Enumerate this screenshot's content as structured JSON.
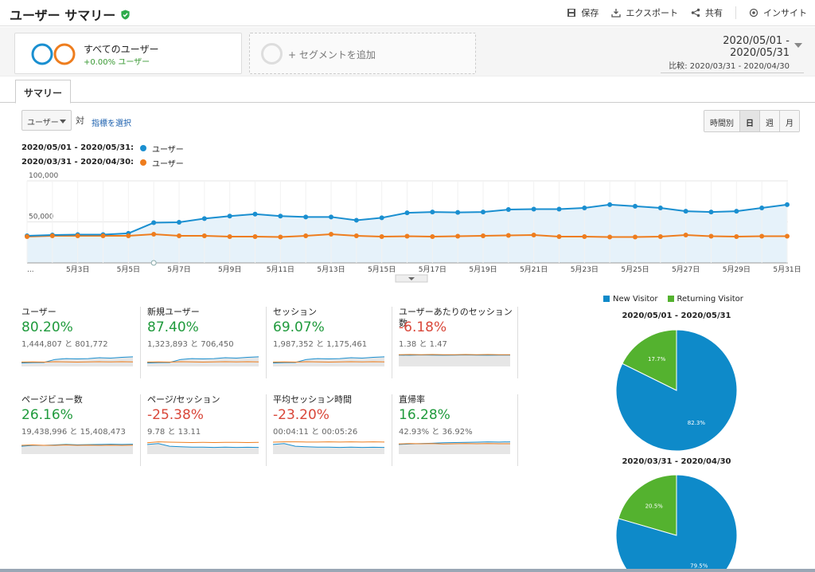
{
  "header": {
    "title": "ユーザー サマリー",
    "actions": {
      "save": "保存",
      "export": "エクスポート",
      "share": "共有",
      "insight": "インサイト"
    }
  },
  "segment": {
    "title": "すべてのユーザー",
    "sub": "+0.00% ユーザー",
    "add": "+ セグメントを追加"
  },
  "daterange": {
    "main": "2020/05/01 - 2020/05/31",
    "compare": "比較: 2020/03/31 - 2020/04/30"
  },
  "tab": {
    "label": "サマリー"
  },
  "controls": {
    "metric": "ユーザー",
    "vs": "対",
    "choose": "指標を選択",
    "granularity": [
      "時間別",
      "日",
      "週",
      "月"
    ],
    "granularity_active": "日"
  },
  "legend": [
    {
      "range": "2020/05/01 - 2020/05/31:",
      "name": "ユーザー",
      "color": "#1a8fd0"
    },
    {
      "range": "2020/03/31 - 2020/04/30:",
      "name": "ユーザー",
      "color": "#ee7d1e"
    }
  ],
  "chart_data": {
    "type": "line",
    "ytick_labels": [
      "100,000",
      "50,000"
    ],
    "ytick_values": [
      100000,
      50000
    ],
    "ylim": [
      0,
      100000
    ],
    "xtick_labels": [
      "...",
      "5月3日",
      "5月5日",
      "5月7日",
      "5月9日",
      "5月11日",
      "5月13日",
      "5月15日",
      "5月17日",
      "5月19日",
      "5月21日",
      "5月23日",
      "5月25日",
      "5月27日",
      "5月29日",
      "5月31日"
    ],
    "series": [
      {
        "name": "ユーザー",
        "color": "#1a8fd0",
        "values": [
          33000,
          34000,
          34500,
          34500,
          36000,
          49000,
          49500,
          54000,
          57000,
          59500,
          57000,
          56000,
          56000,
          52000,
          55000,
          61000,
          62000,
          61500,
          62000,
          65000,
          65500,
          65500,
          67000,
          71000,
          69000,
          67000,
          63000,
          62000,
          63000,
          67000,
          71000
        ]
      },
      {
        "name": "ユーザー",
        "color": "#ee7d1e",
        "values": [
          32000,
          33000,
          33000,
          33000,
          33000,
          35000,
          33000,
          33000,
          32000,
          32000,
          31500,
          33000,
          35000,
          33000,
          32000,
          32500,
          32000,
          32500,
          33000,
          33500,
          34000,
          32000,
          32000,
          31500,
          31500,
          32000,
          34000,
          32500,
          32000,
          32500,
          32500
        ]
      }
    ]
  },
  "summary": [
    {
      "name": "ユーザー",
      "pct": "80.20%",
      "trend": "pos",
      "vals": "1,444,807 と 801,772"
    },
    {
      "name": "新規ユーザー",
      "pct": "87.40%",
      "trend": "pos",
      "vals": "1,323,893 と 706,450"
    },
    {
      "name": "セッション",
      "pct": "69.07%",
      "trend": "pos",
      "vals": "1,987,352 と 1,175,461"
    },
    {
      "name": "ユーザーあたりのセッション数",
      "pct": "-6.18%",
      "trend": "neg",
      "vals": "1.38 と 1.47"
    },
    {
      "name": "ページビュー数",
      "pct": "26.16%",
      "trend": "pos",
      "vals": "19,438,996 と 15,408,473"
    },
    {
      "name": "ページ/セッション",
      "pct": "-25.38%",
      "trend": "neg",
      "vals": "9.78 と 13.11"
    },
    {
      "name": "平均セッション時間",
      "pct": "-23.20%",
      "trend": "neg",
      "vals": "00:04:11 と 00:05:26"
    },
    {
      "name": "直帰率",
      "pct": "16.28%",
      "trend": "pos",
      "vals": "42.93% と 36.92%"
    }
  ],
  "pie": {
    "legend": [
      {
        "name": "New Visitor",
        "color": "#0e8ac9"
      },
      {
        "name": "Returning Visitor",
        "color": "#54b22f"
      }
    ],
    "charts": [
      {
        "title": "2020/05/01 - 2020/05/31",
        "new_pct": 82.3,
        "ret_pct": 17.7,
        "new_label": "82.3%",
        "ret_label": "17.7%"
      },
      {
        "title": "2020/03/31 - 2020/04/30",
        "new_pct": 79.5,
        "ret_pct": 20.5,
        "new_label": "79.5%",
        "ret_label": "20.5%"
      }
    ]
  }
}
